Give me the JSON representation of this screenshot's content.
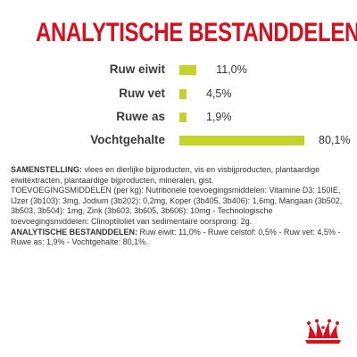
{
  "title": "ANALYTISCHE BESTANDDELEN",
  "colors": {
    "title": "#d4111e",
    "bar": "#c4d32a",
    "text": "#333333",
    "logo": "#d4111e"
  },
  "nutrients": [
    {
      "label": "Ruw eiwit",
      "value_text": "11,0%",
      "value": 11.0
    },
    {
      "label": "Ruw vet",
      "value_text": "4,5%",
      "value": 4.5
    },
    {
      "label": "Ruwe as",
      "value_text": "1,9%",
      "value": 1.9
    },
    {
      "label": "Vochtgehalte",
      "value_text": "80,1%",
      "value": 80.1
    }
  ],
  "composition": {
    "samenstelling_label": "SAMENSTELLING:",
    "samenstelling_text": " vlees en dierlijke bijproducten, vis en visbijproducten, plantaardige eiwitextracten, plantaardige bijproducten, mineralen, gist.",
    "toevoeging_text": "TOEVOEGINGSMIDDELEN (per kg): Nutritionele toevoegingsmiddelen: Vitamine D3: 150IE, IJzer (3b103): 3mg, Jodium (3b202): 0,2mg, Koper (3b405, 3b406): 1,6mg, Mangaan (3b502, 3b503, 3b504): 1mg, Zink (3b603, 3b605, 3b606): 10mg - Technologische toevoegingsmiddelen: Clinoptiloliet van sedimentaire oorsprong: 2g.",
    "analytische_label": "ANALYTISCHE BESTANDDELEN:",
    "analytische_text": " Ruw eiwit: 11,0% - Ruwe celstof: 0,5% - Ruw vet: 4,5% - Ruwe as: 1,9% - Vochtgehalte: 80,1%."
  },
  "logo": {
    "icon": "royal-canin-crown-icon"
  }
}
